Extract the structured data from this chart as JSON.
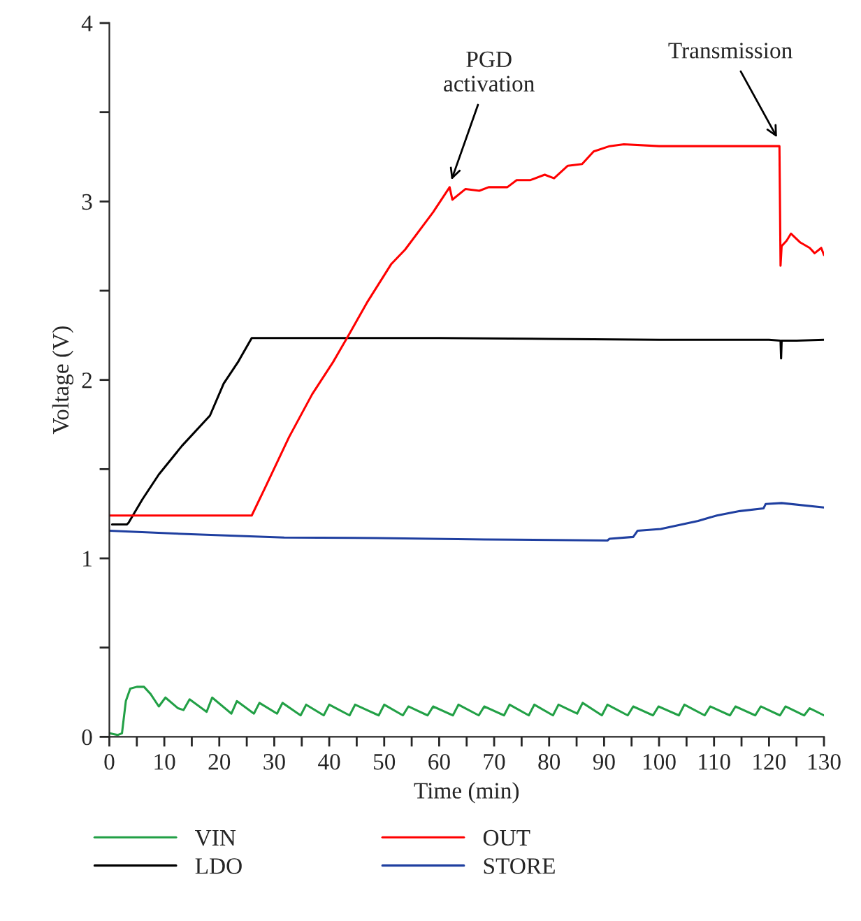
{
  "chart_data": {
    "type": "line",
    "xlabel": "Time (min)",
    "ylabel": "Voltage (V)",
    "xlim": [
      0,
      130
    ],
    "ylim": [
      0,
      4
    ],
    "xticks": [
      0,
      {
        "value": 5,
        "label": null
      },
      10,
      {
        "value": 15,
        "label": null
      },
      20,
      {
        "value": 25,
        "label": null
      },
      30,
      {
        "value": 35,
        "label": null
      },
      40,
      {
        "value": 45,
        "label": null
      },
      50,
      {
        "value": 55,
        "label": null
      },
      60,
      {
        "value": 65,
        "label": null
      },
      70,
      {
        "value": 75,
        "label": null
      },
      80,
      {
        "value": 85,
        "label": null
      },
      90,
      {
        "value": 95,
        "label": null
      },
      100,
      {
        "value": 105,
        "label": null
      },
      110,
      {
        "value": 115,
        "label": null
      },
      120,
      {
        "value": 125,
        "label": null
      },
      130
    ],
    "yticks": [
      0,
      {
        "value": 0.5,
        "label": null
      },
      1,
      {
        "value": 1.5,
        "label": null
      },
      2,
      {
        "value": 2.5,
        "label": null
      },
      3,
      {
        "value": 3.5,
        "label": null
      },
      4
    ],
    "grid": false,
    "legend": "bottom",
    "marker": "none",
    "line_style": "solid",
    "series": [
      {
        "name": "VIN",
        "color": "#22a046",
        "x": [
          0,
          1.5,
          2.3,
          3,
          3.8,
          5,
          6.3,
          7.5,
          9,
          10.2,
          12.5,
          13.5,
          14.6,
          17.7,
          18.7,
          22.2,
          23.2,
          26.3,
          27.3,
          30.5,
          31.5,
          34.8,
          35.8,
          39,
          40,
          43.7,
          44.7,
          49,
          50,
          53.4,
          54.4,
          57.9,
          58.9,
          62.5,
          63.5,
          67.2,
          68.2,
          71.8,
          72.8,
          76.3,
          77.3,
          80.7,
          81.7,
          85.1,
          86.1,
          89.6,
          90.6,
          94.3,
          95.3,
          98.9,
          99.9,
          103.6,
          104.6,
          108.3,
          109.3,
          112.9,
          113.9,
          117.5,
          118.5,
          122,
          123,
          126.4,
          127.4,
          130
        ],
        "values": [
          0.02,
          0.01,
          0.02,
          0.2,
          0.27,
          0.28,
          0.28,
          0.24,
          0.17,
          0.22,
          0.16,
          0.15,
          0.21,
          0.14,
          0.22,
          0.13,
          0.2,
          0.13,
          0.19,
          0.13,
          0.19,
          0.12,
          0.18,
          0.12,
          0.18,
          0.12,
          0.18,
          0.12,
          0.18,
          0.12,
          0.17,
          0.12,
          0.17,
          0.12,
          0.18,
          0.12,
          0.17,
          0.12,
          0.18,
          0.12,
          0.18,
          0.12,
          0.18,
          0.13,
          0.19,
          0.12,
          0.18,
          0.12,
          0.17,
          0.12,
          0.17,
          0.12,
          0.18,
          0.12,
          0.17,
          0.12,
          0.17,
          0.12,
          0.17,
          0.12,
          0.17,
          0.12,
          0.16,
          0.12
        ]
      },
      {
        "name": "LDO",
        "color": "#000000",
        "x": [
          0.5,
          3.2,
          3.5,
          6,
          9,
          13.2,
          18.3,
          20.8,
          23.4,
          25.9,
          40,
          60,
          80,
          100,
          120,
          122.1,
          122.2,
          122.3,
          125,
          130
        ],
        "values": [
          1.19,
          1.19,
          1.2,
          1.33,
          1.47,
          1.63,
          1.8,
          1.98,
          2.1,
          2.235,
          2.235,
          2.235,
          2.23,
          2.225,
          2.225,
          2.22,
          2.12,
          2.22,
          2.22,
          2.225
        ]
      },
      {
        "name": "OUT",
        "color": "#ff0000",
        "x": [
          0,
          10,
          20,
          25.9,
          28.4,
          32.7,
          36.9,
          40.7,
          43.7,
          47,
          51.3,
          53.8,
          58.9,
          61.9,
          62.4,
          64.8,
          67.3,
          69,
          72.4,
          74.1,
          76.6,
          79.2,
          80.9,
          83.4,
          86,
          88.1,
          91,
          93.6,
          100,
          110,
          115,
          121.9,
          122.1,
          122.3,
          123.2,
          124,
          125.7,
          127.4,
          128.3,
          129.5,
          130
        ],
        "values": [
          1.24,
          1.24,
          1.24,
          1.24,
          1.4,
          1.68,
          1.92,
          2.1,
          2.26,
          2.44,
          2.65,
          2.73,
          2.94,
          3.08,
          3.01,
          3.07,
          3.06,
          3.08,
          3.08,
          3.12,
          3.12,
          3.15,
          3.13,
          3.2,
          3.21,
          3.28,
          3.31,
          3.32,
          3.31,
          3.31,
          3.31,
          3.31,
          2.64,
          2.75,
          2.78,
          2.82,
          2.77,
          2.74,
          2.71,
          2.74,
          2.7
        ]
      },
      {
        "name": "STORE",
        "color": "#1f3fa0",
        "x": [
          0,
          14.9,
          31.8,
          48.7,
          68.2,
          73.3,
          90.6,
          91,
          95.3,
          96.1,
          100.3,
          103.7,
          107.1,
          110.5,
          114.7,
          119,
          119.4,
          122.3,
          130
        ],
        "values": [
          1.155,
          1.135,
          1.117,
          1.114,
          1.106,
          1.105,
          1.1,
          1.11,
          1.12,
          1.155,
          1.165,
          1.187,
          1.21,
          1.24,
          1.265,
          1.28,
          1.305,
          1.31,
          1.285
        ]
      }
    ],
    "annotations": [
      {
        "text": "PGD\nactivation",
        "x": 62,
        "y": 3.1
      },
      {
        "text": "Transmission",
        "x": 121.8,
        "y": 3.34
      }
    ]
  }
}
